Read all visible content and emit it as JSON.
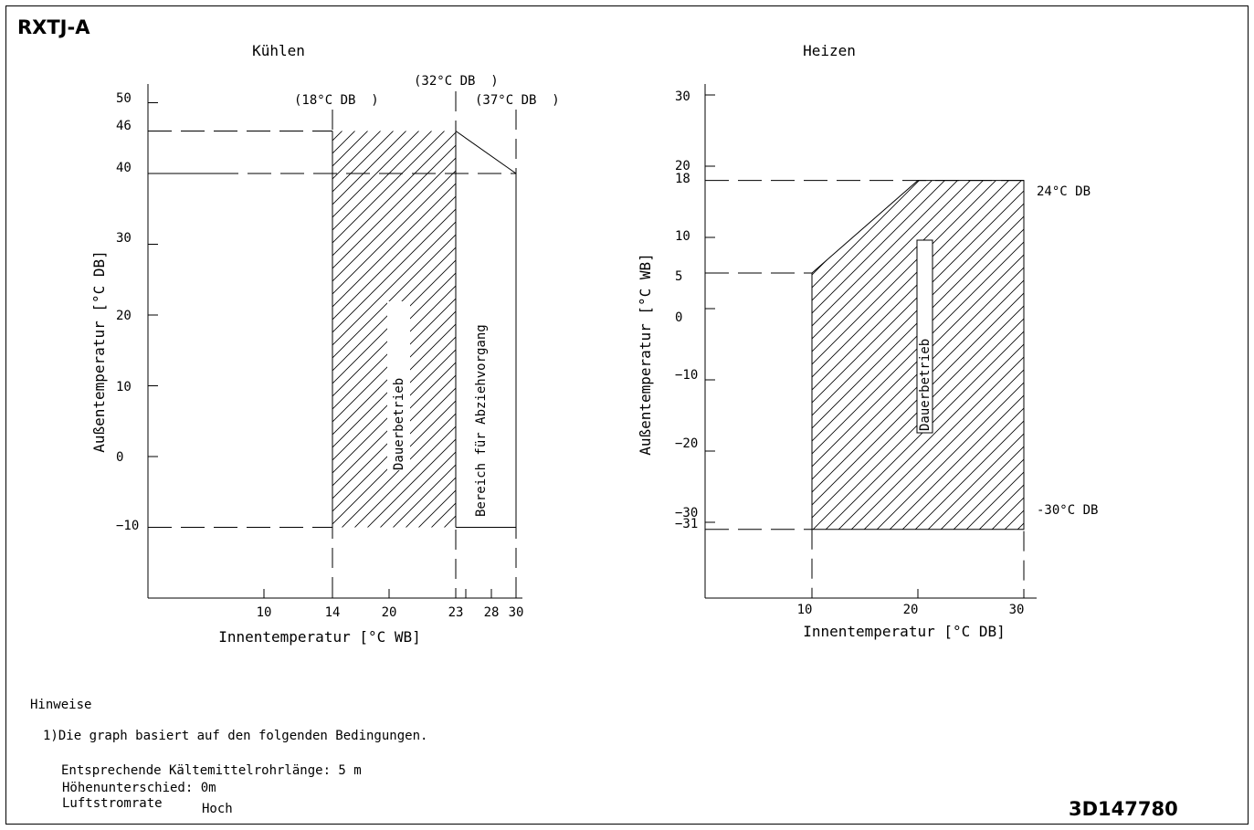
{
  "model": "RXTJ-A",
  "doc_number": "3D147780",
  "notes": {
    "heading": "Hinweise",
    "line1": "1)Die graph basiert auf den folgenden Bedingungen.",
    "line2": "Entsprechende Kältemittelrohrlänge: 5 m",
    "line3": "Höhenunterschied: 0m",
    "line4_label": "Luftstromrate",
    "line4_value": "Hoch"
  },
  "chart_data": [
    {
      "type": "area",
      "title": "Kühlen",
      "xlabel": "Innentemperatur [°C WB]",
      "ylabel": "Außentemperatur [°C DB]",
      "x_ticks": [
        10,
        14,
        20,
        23,
        28,
        30
      ],
      "y_ticks": [
        -10,
        0,
        10,
        20,
        30,
        40,
        46,
        50
      ],
      "top_annotations": [
        "(18°C DB  )",
        "(32°C DB  )",
        "(37°C DB  )"
      ],
      "regions": [
        {
          "name": "Dauerbetrieb",
          "hatched": true,
          "polygon": [
            [
              14,
              -10
            ],
            [
              14,
              46
            ],
            [
              23,
              46
            ],
            [
              23,
              -10
            ]
          ]
        },
        {
          "name": "Bereich für Abziehvorgang",
          "hatched": false,
          "polygon": [
            [
              23,
              -10
            ],
            [
              23,
              46
            ],
            [
              30,
              40
            ],
            [
              30,
              -10
            ]
          ]
        }
      ],
      "reference_lines": {
        "horizontal": [
          46,
          40,
          -10
        ],
        "vertical": [
          14,
          23,
          30
        ]
      }
    },
    {
      "type": "area",
      "title": "Heizen",
      "xlabel": "Innentemperatur [°C DB]",
      "ylabel": "Außentemperatur [°C WB]",
      "x_ticks": [
        10,
        20,
        30
      ],
      "y_ticks": [
        -31,
        -30,
        -20,
        -10,
        0,
        5,
        10,
        18,
        20,
        30
      ],
      "side_annotations": [
        "24°C DB",
        "-30°C DB"
      ],
      "regions": [
        {
          "name": "Dauerbetrieb",
          "hatched": true,
          "polygon": [
            [
              10,
              -31
            ],
            [
              10,
              5
            ],
            [
              20,
              18
            ],
            [
              30,
              18
            ],
            [
              30,
              -31
            ]
          ]
        }
      ],
      "reference_lines": {
        "horizontal": [
          18,
          5,
          -31
        ],
        "vertical": [
          10,
          30
        ]
      }
    }
  ]
}
